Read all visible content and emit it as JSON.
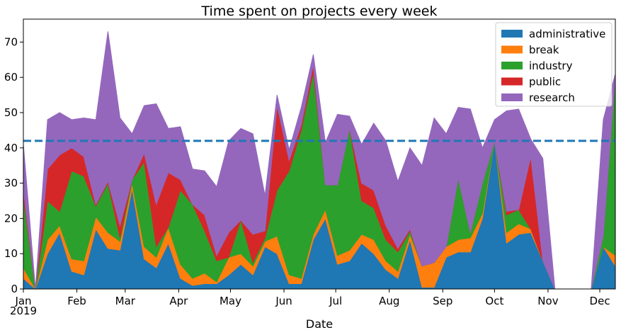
{
  "chart_data": {
    "type": "area",
    "stacked": true,
    "title": "Time spent on projects every week",
    "xlabel": "Date",
    "ylabel": "",
    "x_tick_labels": [
      "Jan",
      "Feb",
      "Mar",
      "Apr",
      "May",
      "Jun",
      "Jul",
      "Aug",
      "Sep",
      "Oct",
      "Nov",
      "Dec"
    ],
    "x_year_label": "2019",
    "yticks": [
      0,
      10,
      20,
      30,
      40,
      50,
      60,
      70
    ],
    "ylim": [
      0,
      76.5
    ],
    "x": [
      "2019-01-01",
      "2019-01-08",
      "2019-01-15",
      "2019-01-22",
      "2019-01-29",
      "2019-02-05",
      "2019-02-12",
      "2019-02-19",
      "2019-02-26",
      "2019-03-05",
      "2019-03-12",
      "2019-03-19",
      "2019-03-26",
      "2019-04-02",
      "2019-04-09",
      "2019-04-16",
      "2019-04-23",
      "2019-04-30",
      "2019-05-07",
      "2019-05-14",
      "2019-05-21",
      "2019-05-28",
      "2019-06-04",
      "2019-06-11",
      "2019-06-18",
      "2019-06-25",
      "2019-07-02",
      "2019-07-09",
      "2019-07-16",
      "2019-07-23",
      "2019-07-30",
      "2019-08-06",
      "2019-08-13",
      "2019-08-20",
      "2019-08-27",
      "2019-09-03",
      "2019-09-10",
      "2019-09-17",
      "2019-09-24",
      "2019-10-01",
      "2019-10-08",
      "2019-10-15",
      "2019-10-22",
      "2019-10-29",
      "2019-11-05",
      "2019-11-12",
      "2019-11-19",
      "2019-11-26",
      "2019-12-03",
      "2019-12-10"
    ],
    "series": [
      {
        "name": "administrative",
        "color": "#1f77b4",
        "values": [
          3,
          0,
          10,
          16,
          5,
          4,
          17,
          11.5,
          11,
          28.5,
          8.5,
          6,
          13,
          3,
          1,
          1.5,
          1.5,
          4,
          7,
          4,
          12,
          10,
          1.5,
          1.5,
          14,
          20,
          7,
          8,
          13,
          10,
          5.5,
          3,
          14,
          0.5,
          0.5,
          9,
          10.5,
          10.5,
          20,
          42,
          13,
          15.5,
          16,
          8,
          0,
          0,
          0,
          0,
          12,
          6.5
        ]
      },
      {
        "name": "break",
        "color": "#ff7f0e",
        "values": [
          3,
          0,
          4,
          2,
          3.5,
          4,
          3.5,
          4.5,
          2.5,
          1.5,
          3.5,
          3,
          4.5,
          4,
          2,
          3,
          0.5,
          5,
          3,
          2.5,
          1.5,
          5,
          2.5,
          1.5,
          1.5,
          2.5,
          2.5,
          3,
          2.5,
          4,
          2.5,
          2,
          1.5,
          6,
          7,
          3,
          3.5,
          4,
          1.5,
          0,
          3,
          3,
          1,
          0,
          0,
          0,
          0,
          0,
          0,
          3
        ]
      },
      {
        "name": "industry",
        "color": "#2ca02c",
        "values": [
          20,
          0,
          11,
          4,
          25,
          24,
          3,
          14,
          1,
          1,
          24,
          3,
          0,
          21,
          21,
          12,
          6,
          0,
          9.5,
          1,
          1,
          13,
          29.5,
          42,
          46,
          7,
          20,
          34.5,
          9.5,
          9,
          6,
          5.5,
          1,
          0,
          0,
          0,
          17.5,
          1.5,
          8.5,
          0,
          5,
          4,
          0,
          0,
          0,
          0,
          0,
          0,
          3,
          51
        ]
      },
      {
        "name": "public",
        "color": "#d62728",
        "values": [
          2,
          0,
          9,
          16,
          6.5,
          5.5,
          0.5,
          0.5,
          3.5,
          0,
          2.5,
          12,
          15.5,
          3,
          0,
          4.5,
          1.5,
          7,
          0,
          8,
          2,
          24,
          3,
          1.5,
          2,
          0,
          0,
          0,
          5,
          5,
          4,
          1,
          0.5,
          0,
          0,
          0,
          0,
          0,
          0,
          0,
          1,
          0,
          20.5,
          0,
          0,
          0,
          0,
          0,
          0,
          0
        ]
      },
      {
        "name": "research",
        "color": "#9467bd",
        "values": [
          13,
          0,
          14,
          12,
          8,
          11,
          24,
          42.5,
          30.5,
          13,
          13.5,
          28.5,
          12.5,
          15,
          10,
          12.5,
          19.5,
          26,
          26,
          28.5,
          10,
          3,
          3,
          5,
          3,
          12,
          20,
          3.5,
          11,
          19,
          24,
          19,
          23,
          28.5,
          41,
          32,
          20,
          35,
          10,
          6,
          28.5,
          28.5,
          5,
          29,
          0,
          0,
          0,
          0,
          33,
          0.5
        ]
      }
    ],
    "hline": {
      "value": 42,
      "color": "#1f77b4",
      "style": "dashed"
    },
    "legend": {
      "position": "top-right",
      "entries": [
        "administrative",
        "break",
        "industry",
        "public",
        "research"
      ]
    },
    "grid": false
  }
}
